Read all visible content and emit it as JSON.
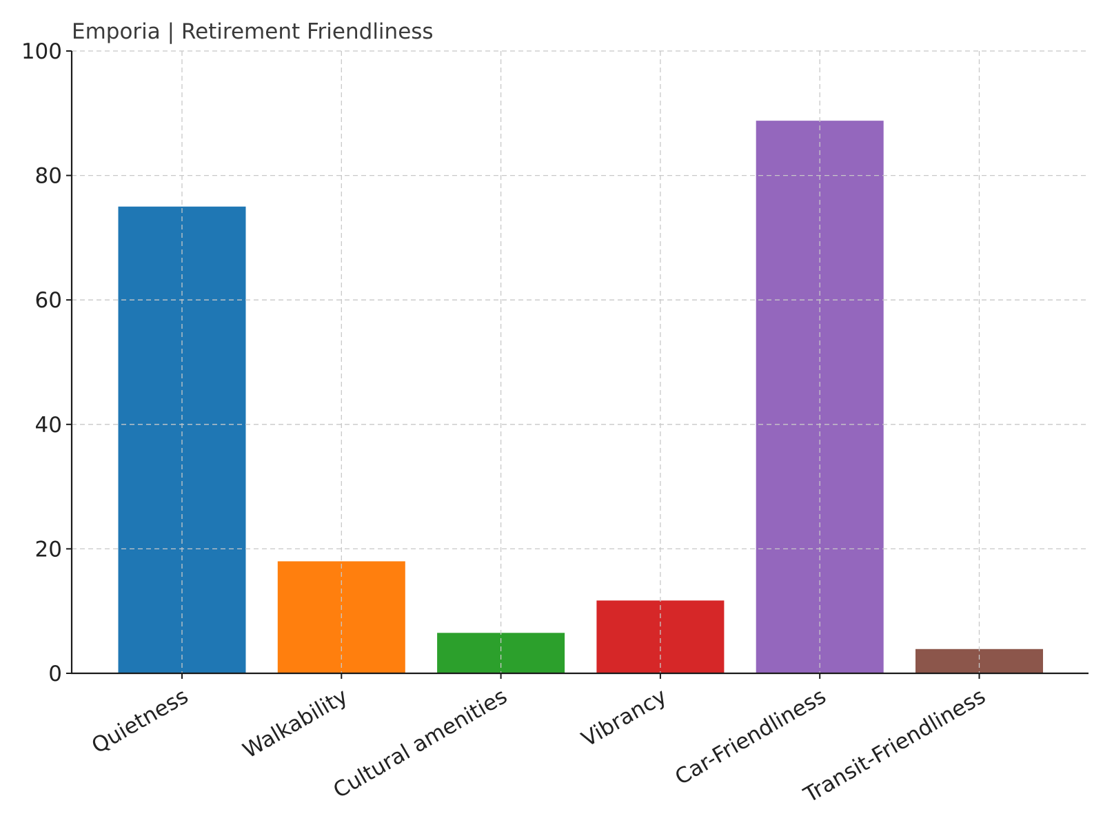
{
  "chart_data": {
    "type": "bar",
    "title": "Emporia | Retirement Friendliness",
    "xlabel": "",
    "ylabel": "",
    "categories": [
      "Quietness",
      "Walkability",
      "Cultural amenities",
      "Vibrancy",
      "Car-Friendliness",
      "Transit-Friendliness"
    ],
    "values": [
      75,
      18,
      6.5,
      11.7,
      88.8,
      3.9
    ],
    "colors": [
      "#1f77b4",
      "#ff7f0e",
      "#2ca02c",
      "#d62728",
      "#9467bd",
      "#8c564b"
    ],
    "ylim": [
      0,
      100
    ],
    "yticks": [
      "0",
      "20",
      "40",
      "60",
      "80",
      "100"
    ],
    "ytick_values": [
      0,
      20,
      40,
      60,
      80,
      100
    ],
    "grid": true,
    "legend": false
  }
}
